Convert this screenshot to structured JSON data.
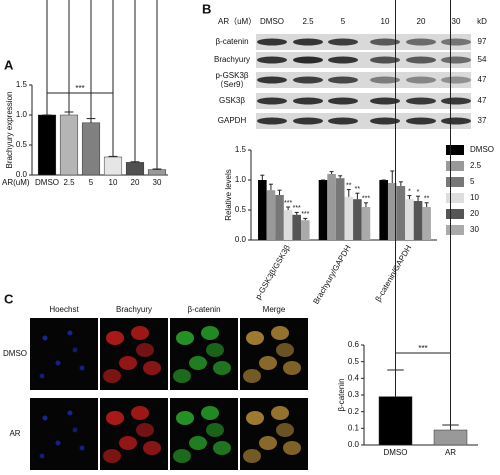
{
  "panel_labels": [
    "A",
    "B",
    "C"
  ],
  "blot": {
    "header": "AR（uM）",
    "lanes": [
      "DMSO",
      "2.5",
      "5",
      "10",
      "20",
      "30"
    ],
    "unit": "kD",
    "rows": [
      {
        "label": "β-catenin",
        "kd": 97
      },
      {
        "label": "Brachyury",
        "kd": 54
      },
      {
        "label": "p-GSK3β",
        "sublabel": "（Ser9）",
        "kd": 47
      },
      {
        "label": "GSK3β",
        "kd": 47
      },
      {
        "label": "GAPDH",
        "kd": 37
      }
    ]
  },
  "microscopy": {
    "columns": [
      "Hoechst",
      "Brachyury",
      "β-catenin",
      "Merge"
    ],
    "rows": [
      "DMSO",
      "AR"
    ]
  },
  "chart_data": [
    {
      "type": "bar",
      "y_label": "Brachyury expression",
      "x_label": "AR(uM)",
      "categories": [
        "DMSO",
        "2.5",
        "5",
        "10",
        "20",
        "30"
      ],
      "values": [
        1.0,
        1.0,
        0.87,
        0.3,
        0.21,
        0.09
      ],
      "errors": [
        0.0,
        0.05,
        0.07,
        0.01,
        0.01,
        0.01
      ],
      "colors": [
        "#000000",
        "#b5b5b5",
        "#808080",
        "#e6e6e6",
        "#505050",
        "#999999"
      ],
      "ylim": [
        0,
        1.5
      ],
      "yticks": [
        {
          "value": 0,
          "label": "0.0"
        },
        {
          "value": 0.5,
          "label": "0.5"
        },
        {
          "value": 1,
          "label": "1.0"
        },
        {
          "value": 1.5,
          "label": "1.5"
        }
      ],
      "annotation": "***"
    },
    {
      "type": "grouped_bar",
      "y_label": "Relative levels",
      "categories": [
        "p-GSK3β/GSK3β",
        "Brachyury/GAPDH",
        "β-catenin/GAPDH"
      ],
      "series": [
        {
          "name": "DMSO",
          "color": "#000000",
          "values": [
            1.0,
            1.0,
            1.0
          ],
          "errors": [
            0.08,
            0.0,
            0.0
          ],
          "annotations": [
            null,
            null,
            null
          ]
        },
        {
          "name": "2.5",
          "color": "#999999",
          "values": [
            0.83,
            1.1,
            0.95
          ],
          "errors": [
            0.1,
            0.04,
            0.2
          ],
          "annotations": [
            null,
            null,
            null
          ]
        },
        {
          "name": "5",
          "color": "#777777",
          "values": [
            0.75,
            1.03,
            0.9
          ],
          "errors": [
            0.08,
            0.04,
            0.07
          ],
          "annotations": [
            null,
            null,
            null
          ]
        },
        {
          "name": "10",
          "color": "#dddddd",
          "values": [
            0.5,
            0.72,
            0.68
          ],
          "errors": [
            0.05,
            0.12,
            0.06
          ],
          "annotations": [
            "***",
            "**",
            "*"
          ]
        },
        {
          "name": "20",
          "color": "#555555",
          "values": [
            0.42,
            0.68,
            0.65
          ],
          "errors": [
            0.04,
            0.1,
            0.08
          ],
          "annotations": [
            "***",
            "**",
            "*"
          ]
        },
        {
          "name": "30",
          "color": "#aaaaaa",
          "values": [
            0.33,
            0.55,
            0.55
          ],
          "errors": [
            0.03,
            0.07,
            0.07
          ],
          "annotations": [
            "***",
            "***",
            "**"
          ]
        }
      ],
      "ylim": [
        0,
        1.5
      ],
      "yticks": [
        {
          "value": 0,
          "label": "0.0"
        },
        {
          "value": 0.5,
          "label": "0.5"
        },
        {
          "value": 1,
          "label": "1.0"
        },
        {
          "value": 1.5,
          "label": "1.5"
        }
      ]
    },
    {
      "type": "bar",
      "y_label": "β-catenin",
      "categories": [
        "DMSO",
        "AR"
      ],
      "values": [
        0.29,
        0.09
      ],
      "errors": [
        0.16,
        0.03
      ],
      "colors": [
        "#000000",
        "#999999"
      ],
      "ylim": [
        0,
        0.6
      ],
      "yticks": [
        {
          "value": 0,
          "label": "0.0"
        },
        {
          "value": 0.1,
          "label": "0.1"
        },
        {
          "value": 0.2,
          "label": "0.2"
        },
        {
          "value": 0.3,
          "label": "0.3"
        },
        {
          "value": 0.4,
          "label": "0.4"
        },
        {
          "value": 0.5,
          "label": "0.5"
        },
        {
          "value": 0.6,
          "label": "0.6"
        }
      ],
      "annotation": "***"
    }
  ]
}
